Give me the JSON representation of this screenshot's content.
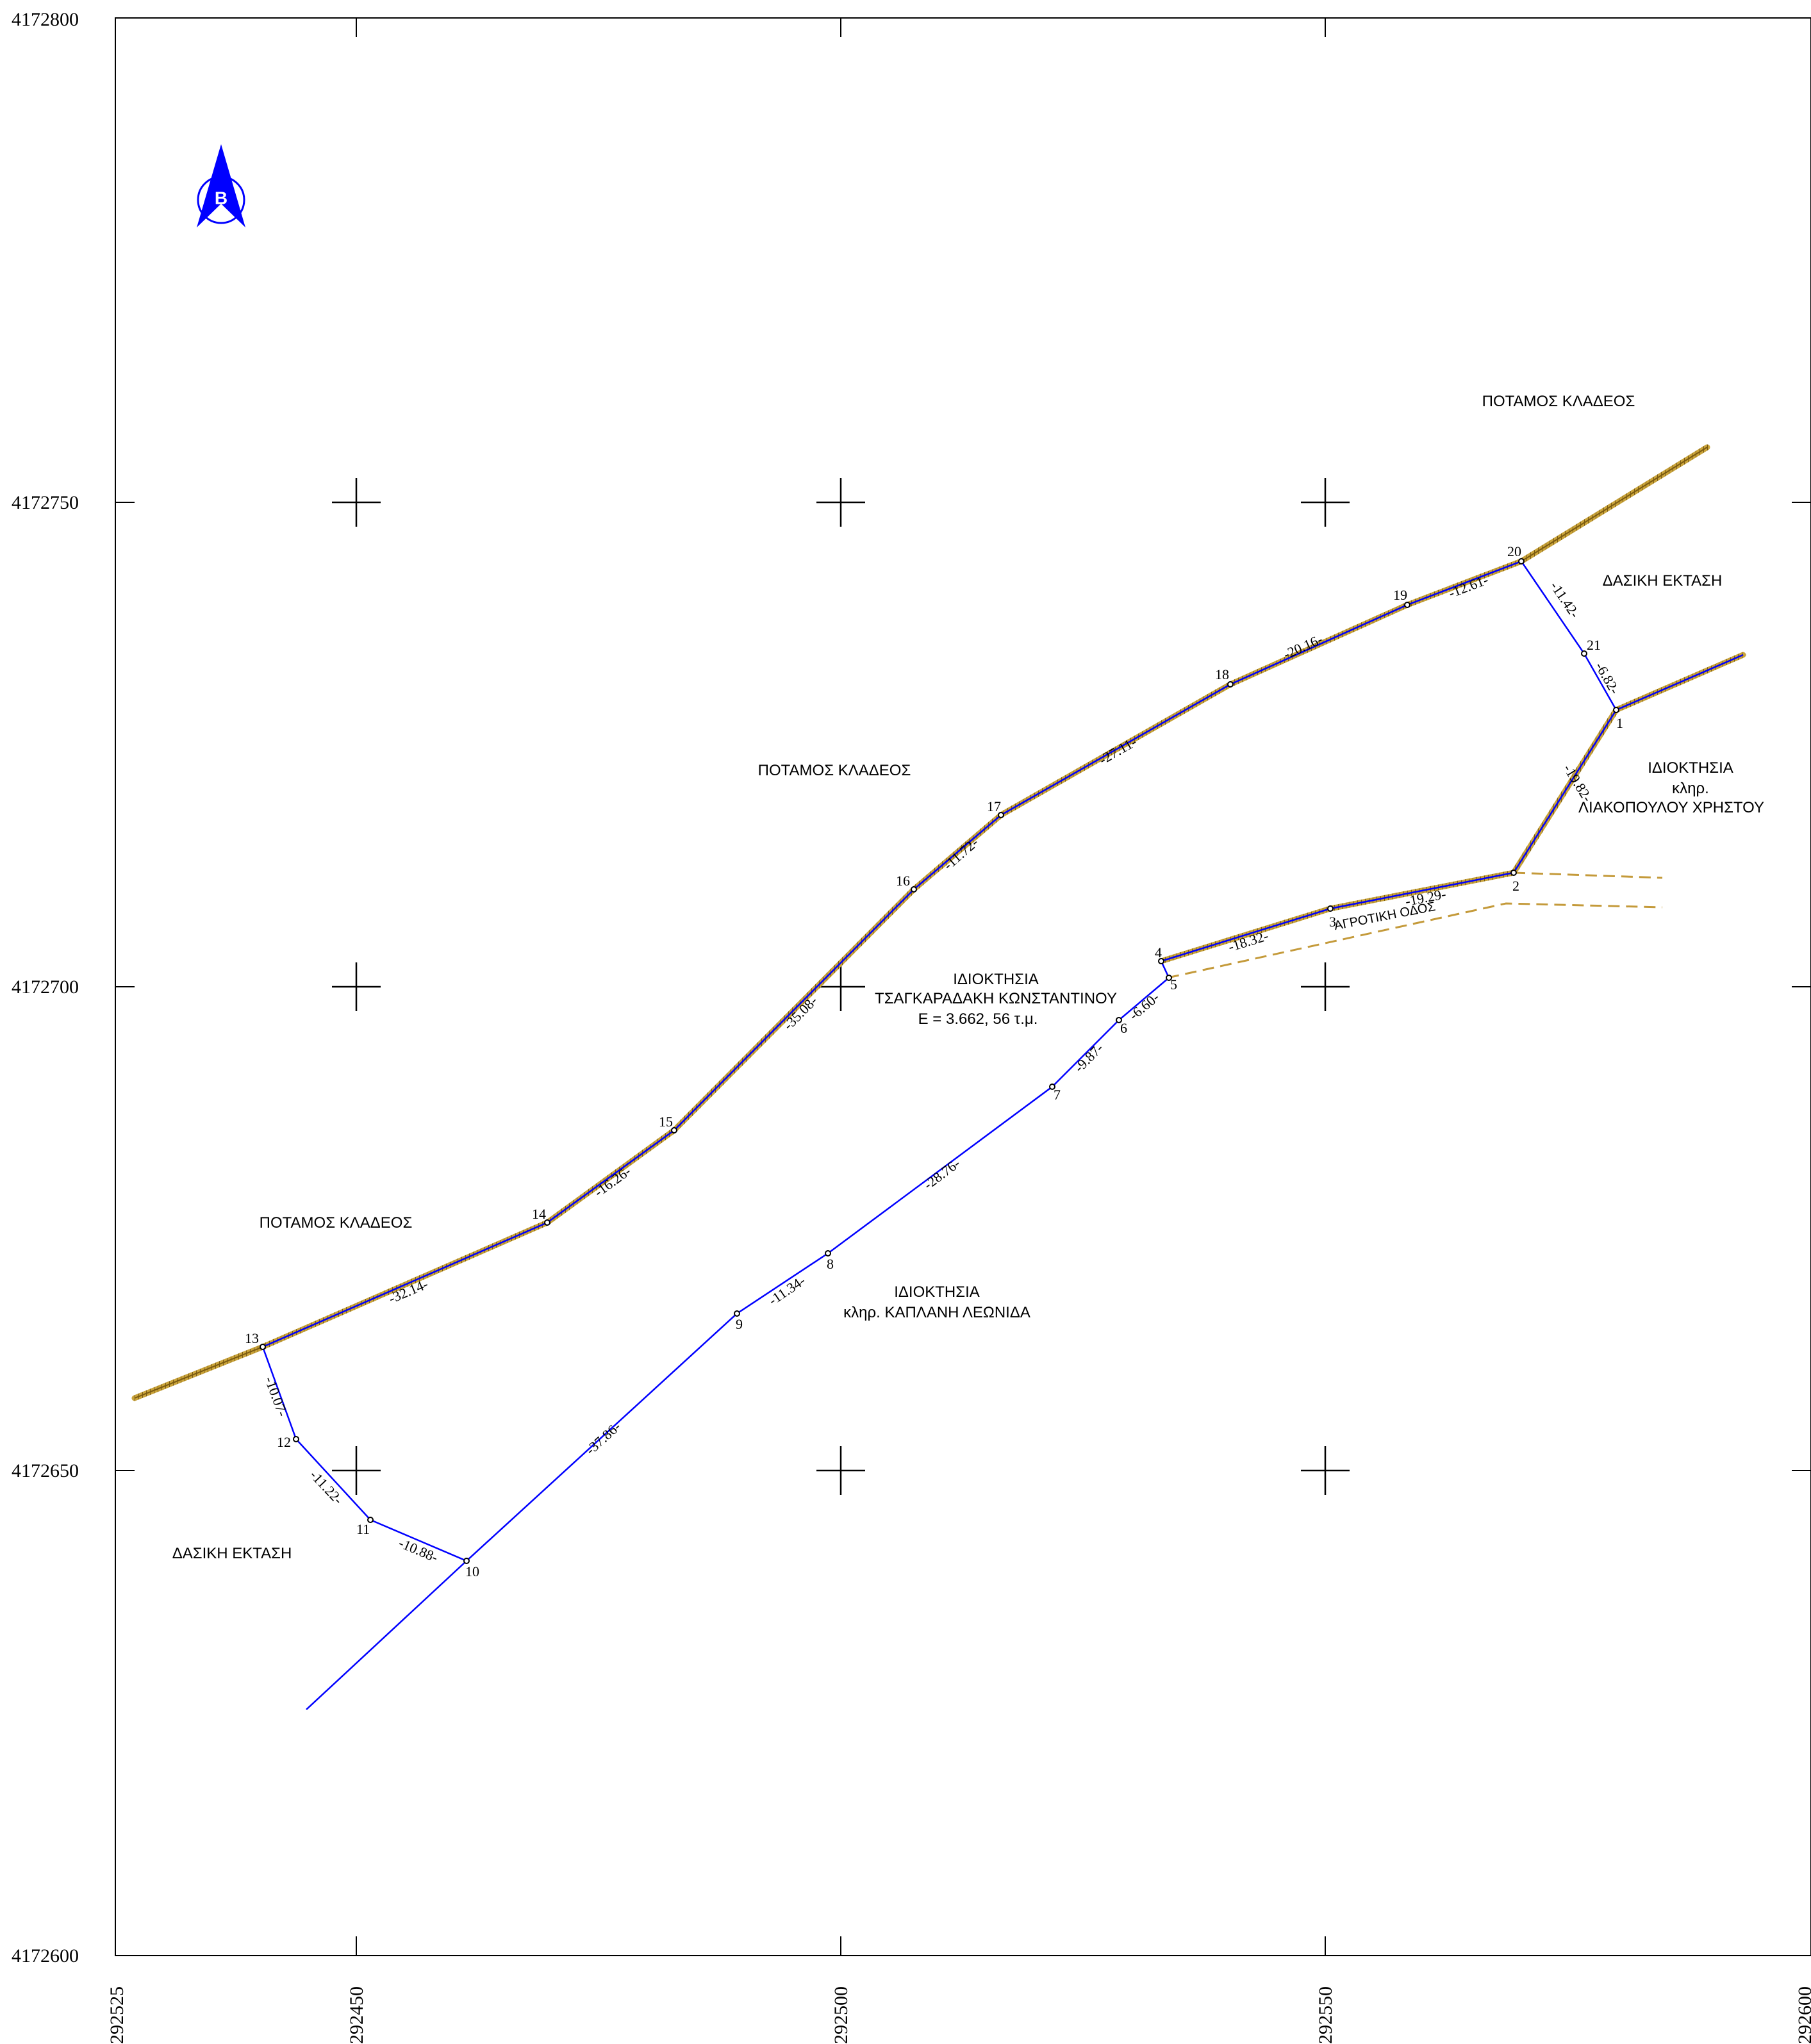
{
  "axes": {
    "y_ticks": [
      "4172800",
      "4172750",
      "4172700",
      "4172650",
      "4172600"
    ],
    "x_ticks": [
      "292525",
      "292450",
      "292500",
      "292550",
      "292600"
    ]
  },
  "north_arrow": {
    "letter": "Β",
    "icon": "north-arrow-icon",
    "color": "#0000ff"
  },
  "colors": {
    "boundary": "#0000ff",
    "river": "#b58b1e",
    "road": "#c49a3a",
    "frame": "#000000"
  },
  "points": [
    {
      "id": "1",
      "label": "1"
    },
    {
      "id": "2",
      "label": "2"
    },
    {
      "id": "3",
      "label": "3"
    },
    {
      "id": "4",
      "label": "4"
    },
    {
      "id": "5",
      "label": "5"
    },
    {
      "id": "6",
      "label": "6"
    },
    {
      "id": "7",
      "label": "7"
    },
    {
      "id": "8",
      "label": "8"
    },
    {
      "id": "9",
      "label": "9"
    },
    {
      "id": "10",
      "label": "10"
    },
    {
      "id": "11",
      "label": "11"
    },
    {
      "id": "12",
      "label": "12"
    },
    {
      "id": "13",
      "label": "13"
    },
    {
      "id": "14",
      "label": "14"
    },
    {
      "id": "15",
      "label": "15"
    },
    {
      "id": "16",
      "label": "16"
    },
    {
      "id": "17",
      "label": "17"
    },
    {
      "id": "18",
      "label": "18"
    },
    {
      "id": "19",
      "label": "19"
    },
    {
      "id": "20",
      "label": "20"
    },
    {
      "id": "21",
      "label": "21"
    }
  ],
  "segment_lengths": [
    {
      "from": "1",
      "to": "2",
      "label": "-19.82-"
    },
    {
      "from": "2",
      "to": "3",
      "label": "-19.29-"
    },
    {
      "from": "3",
      "to": "4",
      "label": "-18.32-"
    },
    {
      "from": "5",
      "to": "6",
      "label": "-6.60-"
    },
    {
      "from": "6",
      "to": "7",
      "label": "-9.87-"
    },
    {
      "from": "7",
      "to": "8",
      "label": "-28.76-"
    },
    {
      "from": "8",
      "to": "9",
      "label": "-11.34-"
    },
    {
      "from": "9",
      "to": "10",
      "label": "-37.86-"
    },
    {
      "from": "10",
      "to": "11",
      "label": "-10.88-"
    },
    {
      "from": "11",
      "to": "12",
      "label": "-11.22-"
    },
    {
      "from": "12",
      "to": "13",
      "label": "-10.07-"
    },
    {
      "from": "13",
      "to": "14",
      "label": "-32.14-"
    },
    {
      "from": "14",
      "to": "15",
      "label": "-16.26-"
    },
    {
      "from": "15",
      "to": "16",
      "label": "-35.08-"
    },
    {
      "from": "16",
      "to": "17",
      "label": "-11.72-"
    },
    {
      "from": "17",
      "to": "18",
      "label": "-27.11-"
    },
    {
      "from": "18",
      "to": "19",
      "label": "-20.16-"
    },
    {
      "from": "19",
      "to": "20",
      "label": "-12.61-"
    },
    {
      "from": "20",
      "to": "21",
      "label": "-11.42-"
    },
    {
      "from": "21",
      "to": "1",
      "label": "-6.82-"
    }
  ],
  "labels": {
    "river_top": "ΠΟΤΑΜΟΣ ΚΛΑΔΕΟΣ",
    "river_middle": "ΠΟΤΑΜΟΣ ΚΛΑΔΕΟΣ",
    "river_left": "ΠΟΤΑΜΟΣ ΚΛΑΔΕΟΣ",
    "forest_right": "ΔΑΣΙΚΗ ΕΚΤΑΣΗ",
    "forest_left": "ΔΑΣΙΚΗ ΕΚΤΑΣΗ",
    "property_liakopoulou": [
      "ΙΔΙΟΚΤΗΣΙΑ",
      "κληρ.",
      "ΛΙΑΚΟΠΟΥΛΟΥ ΧΡΗΣΤΟΥ"
    ],
    "property_main": [
      "ΙΔΙΟΚΤΗΣΙΑ",
      "ΤΣΑΓΚΑΡΑΔΑΚΗ ΚΩΝΣΤΑΝΤΙΝΟΥ",
      "Ε = 3.662, 56 τ.μ."
    ],
    "property_kaplani": [
      "ΙΔΙΟΚΤΗΣΙΑ",
      "κληρ. ΚΑΠΛΑΝΗ ΛΕΩΝΙΔΑ"
    ],
    "road": "ΑΓΡΟΤΙΚΗ ΟΔΟΣ"
  }
}
